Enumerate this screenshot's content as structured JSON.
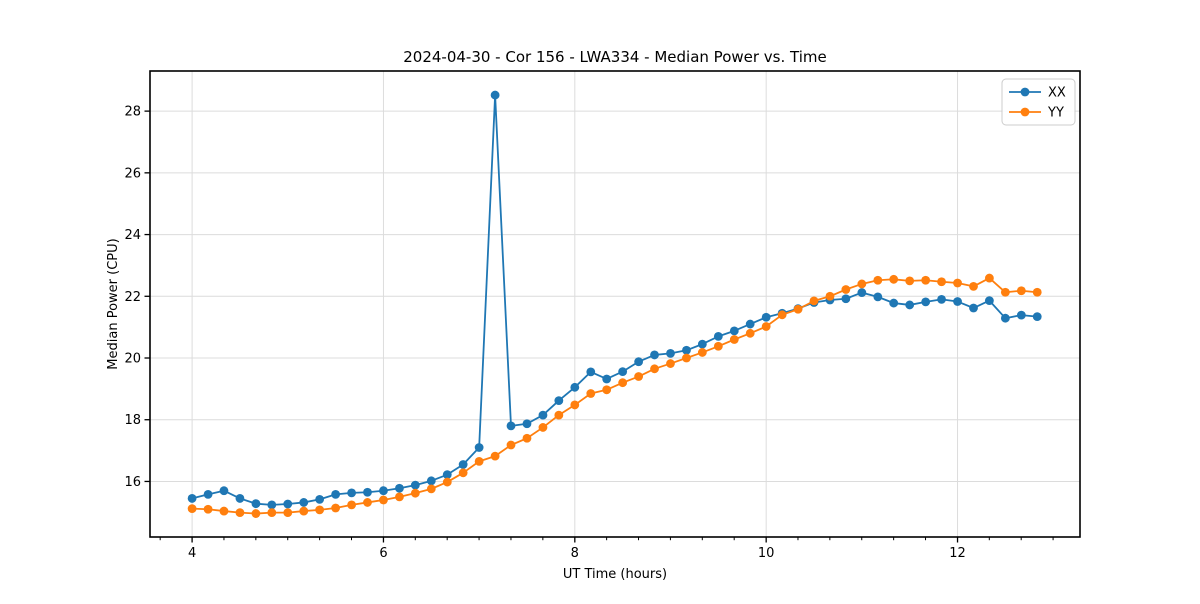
{
  "chart_data": {
    "type": "line",
    "title": "2024-04-30 - Cor 156 - LWA334 - Median Power vs. Time",
    "xlabel": "UT Time (hours)",
    "ylabel": "Median Power (CPU)",
    "xlim": [
      3.56,
      13.28
    ],
    "ylim": [
      14.2,
      29.3
    ],
    "xticks": [
      4,
      6,
      8,
      10,
      12
    ],
    "x_minor_step": 0.3333,
    "yticks": [
      16,
      18,
      20,
      22,
      24,
      26,
      28
    ],
    "grid": true,
    "legend_position": "upper right",
    "x": [
      4.0,
      4.167,
      4.333,
      4.5,
      4.667,
      4.833,
      5.0,
      5.167,
      5.333,
      5.5,
      5.667,
      5.833,
      6.0,
      6.167,
      6.333,
      6.5,
      6.667,
      6.833,
      7.0,
      7.167,
      7.333,
      7.5,
      7.667,
      7.833,
      8.0,
      8.167,
      8.333,
      8.5,
      8.667,
      8.833,
      9.0,
      9.167,
      9.333,
      9.5,
      9.667,
      9.833,
      10.0,
      10.167,
      10.333,
      10.5,
      10.667,
      10.833,
      11.0,
      11.167,
      11.333,
      11.5,
      11.667,
      11.833,
      12.0,
      12.167,
      12.333,
      12.5,
      12.667,
      12.833
    ],
    "series": [
      {
        "name": "XX",
        "color": "#1f77b4",
        "values": [
          15.45,
          15.58,
          15.7,
          15.45,
          15.28,
          15.24,
          15.27,
          15.32,
          15.42,
          15.58,
          15.63,
          15.65,
          15.7,
          15.78,
          15.88,
          16.02,
          16.22,
          16.55,
          17.1,
          28.52,
          17.8,
          17.87,
          18.15,
          18.62,
          19.05,
          19.55,
          19.32,
          19.56,
          19.88,
          20.1,
          20.15,
          20.25,
          20.45,
          20.7,
          20.88,
          21.1,
          21.32,
          21.45,
          21.6,
          21.8,
          21.88,
          21.92,
          22.12,
          21.98,
          21.78,
          21.72,
          21.82,
          21.9,
          21.83,
          21.62,
          21.86,
          21.29,
          21.39,
          21.34
        ]
      },
      {
        "name": "YY",
        "color": "#ff7f0e",
        "values": [
          15.12,
          15.1,
          15.04,
          14.99,
          14.96,
          14.99,
          14.99,
          15.04,
          15.08,
          15.14,
          15.24,
          15.32,
          15.4,
          15.5,
          15.62,
          15.76,
          15.98,
          16.28,
          16.65,
          16.82,
          17.18,
          17.4,
          17.75,
          18.15,
          18.48,
          18.85,
          18.97,
          19.2,
          19.4,
          19.65,
          19.82,
          20.0,
          20.18,
          20.38,
          20.6,
          20.8,
          21.02,
          21.4,
          21.58,
          21.85,
          22.0,
          22.22,
          22.4,
          22.52,
          22.55,
          22.5,
          22.52,
          22.47,
          22.43,
          22.32,
          22.59,
          22.13,
          22.18,
          22.13
        ]
      }
    ],
    "style": {
      "grid_color": "#dcdcdc",
      "spine_color": "#000000",
      "background": "#ffffff",
      "marker_radius": 4.4,
      "line_width": 1.8
    }
  }
}
